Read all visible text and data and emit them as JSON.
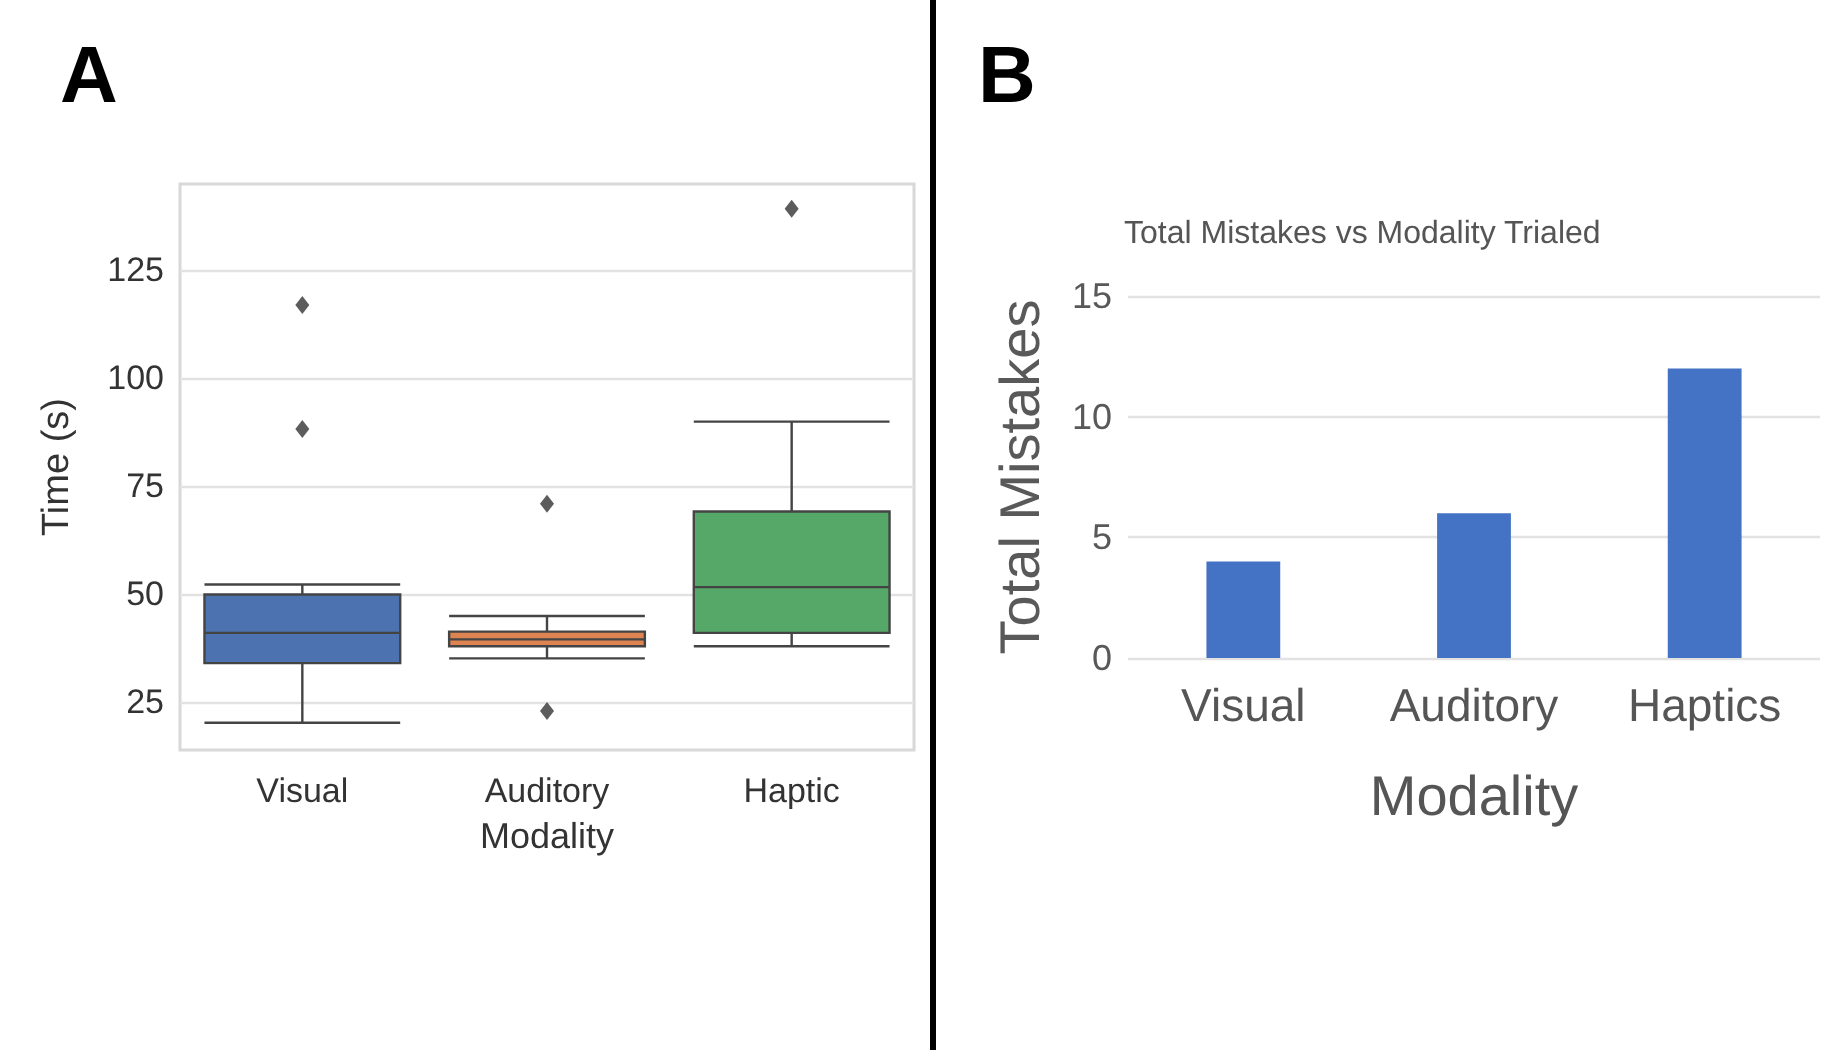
{
  "chart_data": [
    {
      "type": "box",
      "annotations": [
        "A"
      ],
      "xlabel": "Modality",
      "ylabel": "Time (s)",
      "categories": [
        "Visual",
        "Auditory",
        "Haptic"
      ],
      "colors": [
        "#4c72b0",
        "#dd8452",
        "#55a868"
      ],
      "boxes": [
        {
          "low": 20.3,
          "q1": 34.1,
          "median": 41.1,
          "q3": 50,
          "high": 52.3,
          "outliers": [
            117,
            88.3
          ]
        },
        {
          "low": 35.2,
          "q1": 38,
          "median": 39.6,
          "q3": 41.4,
          "high": 45,
          "outliers": [
            71,
            23
          ]
        },
        {
          "low": 38,
          "q1": 41.1,
          "median": 51.7,
          "q3": 69.2,
          "high": 90,
          "outliers": [
            139.3
          ]
        }
      ],
      "ylim": [
        14,
        145
      ],
      "yticks": [
        25,
        50,
        75,
        100,
        125
      ],
      "grid": "y",
      "marker": "diamond"
    },
    {
      "type": "bar",
      "annotations": [
        "B"
      ],
      "title": "Total Mistakes vs Modality Trialed",
      "xlabel": "Modality",
      "ylabel": "Total Mistakes",
      "categories": [
        "Visual",
        "Auditory",
        "Haptics"
      ],
      "values": [
        4,
        6,
        12
      ],
      "color": "#4472c4",
      "ylim": [
        0,
        15
      ],
      "yticks": [
        0,
        5,
        10,
        15
      ],
      "grid": "y"
    }
  ]
}
